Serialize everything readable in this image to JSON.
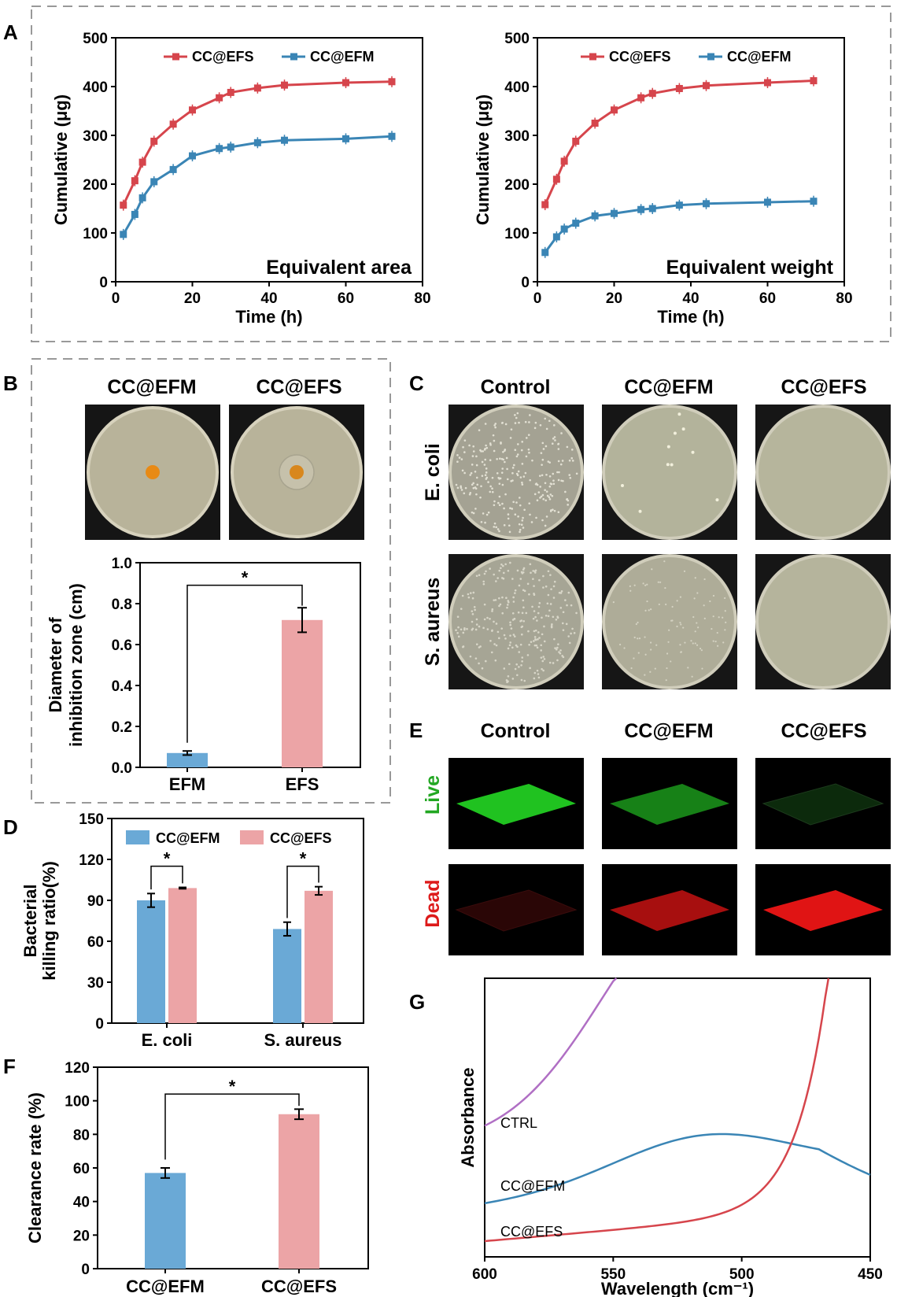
{
  "panel_labels": {
    "A": "A",
    "B": "B",
    "C": "C",
    "D": "D",
    "E": "E",
    "F": "F",
    "G": "G"
  },
  "colors": {
    "efs_line": "#d6454c",
    "efm_line": "#3a85b5",
    "efm_bar": "#6aa9d6",
    "efs_bar": "#eca4a6",
    "ctrl_line": "#b06fc4",
    "live": "#22cc22",
    "dead": "#dd1111"
  },
  "panel_B": {
    "photo_headers": [
      "CC@EFM",
      "CC@EFS"
    ],
    "significance": "*"
  },
  "panel_C": {
    "col_headers": [
      "Control",
      "CC@EFM",
      "CC@EFS"
    ],
    "row_headers": [
      "E. coli",
      "S. aureus"
    ]
  },
  "panel_E": {
    "col_headers": [
      "Control",
      "CC@EFM",
      "CC@EFS"
    ],
    "row_headers": [
      "Live",
      "Dead"
    ]
  },
  "chart_data": [
    {
      "id": "A-left",
      "type": "line",
      "xlabel": "Time (h)",
      "ylabel": "Cumulative (μg)",
      "xlim": [
        0,
        80
      ],
      "ylim": [
        0,
        500
      ],
      "xticks": [
        0,
        20,
        40,
        60,
        80
      ],
      "yticks": [
        0,
        100,
        200,
        300,
        400,
        500
      ],
      "annotation": "Equivalent area",
      "legend": "top-left",
      "x": [
        2,
        5,
        7,
        10,
        15,
        20,
        27,
        30,
        37,
        44,
        60,
        72
      ],
      "series": [
        {
          "name": "CC@EFS",
          "values": [
            157,
            207,
            245,
            288,
            323,
            352,
            377,
            388,
            397,
            403,
            408,
            410
          ]
        },
        {
          "name": "CC@EFM",
          "values": [
            97,
            138,
            172,
            205,
            230,
            258,
            273,
            276,
            285,
            290,
            293,
            298
          ]
        }
      ]
    },
    {
      "id": "A-right",
      "type": "line",
      "xlabel": "Time (h)",
      "ylabel": "Cumulative (μg)",
      "xlim": [
        0,
        80
      ],
      "ylim": [
        0,
        500
      ],
      "xticks": [
        0,
        20,
        40,
        60,
        80
      ],
      "yticks": [
        0,
        100,
        200,
        300,
        400,
        500
      ],
      "annotation": "Equivalent weight",
      "legend": "top-right",
      "x": [
        2,
        5,
        7,
        10,
        15,
        20,
        27,
        30,
        37,
        44,
        60,
        72
      ],
      "series": [
        {
          "name": "CC@EFS",
          "values": [
            158,
            210,
            247,
            288,
            325,
            352,
            377,
            386,
            396,
            402,
            408,
            412
          ]
        },
        {
          "name": "CC@EFM",
          "values": [
            60,
            92,
            108,
            120,
            135,
            140,
            148,
            150,
            157,
            160,
            163,
            165
          ]
        }
      ]
    },
    {
      "id": "B",
      "type": "bar",
      "ylabel": "Diameter of inhibition zone (cm)",
      "ylabel_lines": [
        "Diameter of",
        "inhibition zone (cm)"
      ],
      "ylim": [
        0,
        1.0
      ],
      "yticks": [
        "0.0",
        "0.2",
        "0.4",
        "0.6",
        "0.8",
        "1.0"
      ],
      "categories": [
        "EFM",
        "EFS"
      ],
      "values": [
        0.07,
        0.72
      ],
      "errors": [
        0.01,
        0.06
      ],
      "significance": "*"
    },
    {
      "id": "D",
      "type": "bar",
      "ylabel": "Bacterial killing ratio(%)",
      "ylabel_lines": [
        "Bacterial",
        "killing ratio(%)"
      ],
      "ylim": [
        0,
        150
      ],
      "yticks": [
        0,
        30,
        60,
        90,
        120,
        150
      ],
      "categories": [
        "E. coli",
        "S. aureus"
      ],
      "legend": "top",
      "series": [
        {
          "name": "CC@EFM",
          "values": [
            90,
            69
          ],
          "errors": [
            5,
            5
          ]
        },
        {
          "name": "CC@EFS",
          "values": [
            99,
            97
          ],
          "errors": [
            0.5,
            3
          ]
        }
      ],
      "significance": [
        "*",
        "*"
      ]
    },
    {
      "id": "F",
      "type": "bar",
      "ylabel": "Clearance rate (%)",
      "ylim": [
        0,
        120
      ],
      "yticks": [
        0,
        20,
        40,
        60,
        80,
        100,
        120
      ],
      "categories": [
        "CC@EFM",
        "CC@EFS"
      ],
      "values": [
        57,
        92
      ],
      "errors": [
        3,
        3
      ],
      "significance": "*"
    },
    {
      "id": "G",
      "type": "line",
      "xlabel": "Wavelength (cm⁻¹)",
      "ylabel": "Absorbance",
      "xlim": [
        600,
        450
      ],
      "xticks": [
        600,
        550,
        500,
        450
      ],
      "series": [
        {
          "name": "CTRL"
        },
        {
          "name": "CC@EFM"
        },
        {
          "name": "CC@EFS"
        }
      ]
    }
  ]
}
